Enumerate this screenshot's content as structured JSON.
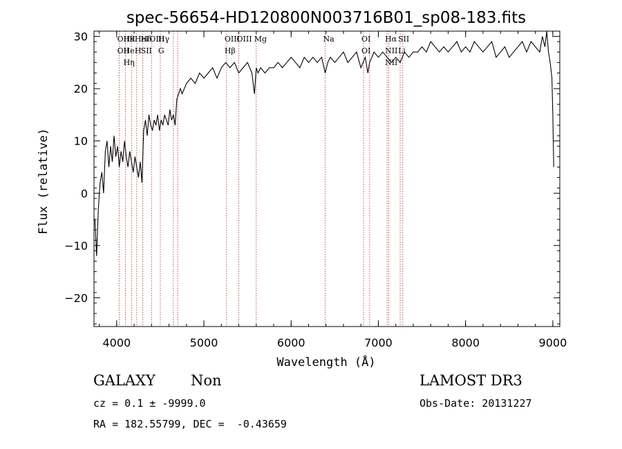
{
  "chart_data": {
    "type": "line",
    "title": "spec-56654-HD120800N003716B01_sp08-183.fits",
    "xlabel": "Wavelength (Å)",
    "ylabel": "Flux (relative)",
    "xlim": [
      3740,
      9080
    ],
    "ylim": [
      -25.5,
      31.0
    ],
    "x_ticks": [
      4000,
      5000,
      6000,
      7000,
      8000,
      9000
    ],
    "y_ticks": [
      -20,
      -10,
      0,
      10,
      20,
      30
    ],
    "grid": false,
    "series": [
      {
        "x": [
          3750,
          3770,
          3790,
          3810,
          3830,
          3850,
          3870,
          3890,
          3910,
          3930,
          3950,
          3970,
          3990,
          4010,
          4030,
          4050,
          4070,
          4090,
          4110,
          4130,
          4150,
          4170,
          4190,
          4210,
          4230,
          4250,
          4270,
          4290,
          4310,
          4330,
          4350,
          4370,
          4390,
          4410,
          4430,
          4450,
          4470,
          4490,
          4510,
          4530,
          4550,
          4570,
          4590,
          4610,
          4630,
          4650,
          4670,
          4690,
          4710,
          4730,
          4750,
          4800,
          4850,
          4900,
          4950,
          5000,
          5050,
          5100,
          5150,
          5200,
          5250,
          5300,
          5350,
          5400,
          5450,
          5500,
          5550,
          5580,
          5600,
          5620,
          5650,
          5700,
          5750,
          5800,
          5850,
          5900,
          5950,
          6000,
          6050,
          6100,
          6150,
          6200,
          6250,
          6300,
          6350,
          6390,
          6420,
          6450,
          6500,
          6550,
          6600,
          6650,
          6700,
          6750,
          6800,
          6850,
          6880,
          6900,
          6950,
          7000,
          7050,
          7100,
          7150,
          7200,
          7250,
          7300,
          7350,
          7400,
          7450,
          7500,
          7550,
          7600,
          7650,
          7700,
          7750,
          7800,
          7850,
          7900,
          7950,
          8000,
          8050,
          8100,
          8150,
          8200,
          8250,
          8300,
          8350,
          8400,
          8450,
          8500,
          8550,
          8600,
          8650,
          8700,
          8750,
          8800,
          8850,
          8880,
          8910,
          8930,
          8950,
          8970,
          8990,
          9000,
          9010
        ],
        "y": [
          -5,
          -12,
          -3,
          2,
          4,
          0,
          8,
          10,
          5,
          9,
          6,
          11,
          7,
          9,
          5,
          8,
          6,
          10,
          7,
          5,
          8,
          6,
          4,
          7,
          5,
          3,
          6,
          2,
          12,
          14,
          11,
          15,
          13,
          12,
          14,
          13,
          15,
          12,
          14,
          13,
          15,
          14,
          13,
          16,
          14,
          15,
          13,
          18,
          19,
          20,
          19,
          21,
          22,
          21,
          23,
          22,
          23,
          24,
          22,
          24,
          25,
          24,
          25,
          23,
          24,
          25,
          23,
          19,
          24,
          23,
          24,
          23,
          24,
          24,
          25,
          24,
          25,
          26,
          25,
          24,
          26,
          25,
          26,
          25,
          26,
          23,
          25,
          26,
          25,
          26,
          27,
          25,
          26,
          27,
          24,
          26,
          23,
          25,
          27,
          26,
          27,
          26,
          25,
          26,
          25,
          27,
          26,
          27,
          27,
          28,
          27,
          29,
          28,
          27,
          28,
          27,
          28,
          29,
          27,
          28,
          27,
          29,
          28,
          27,
          28,
          29,
          26,
          27,
          28,
          26,
          27,
          28,
          29,
          27,
          29,
          28,
          27,
          30,
          28,
          31,
          27,
          25,
          22,
          15,
          5
        ]
      }
    ],
    "lines": [
      {
        "x": 4030,
        "labels": [
          "OII",
          "OII"
        ]
      },
      {
        "x": 4101,
        "labels": [
          "Hθ",
          "He",
          "Hη"
        ]
      },
      {
        "x": 4170,
        "labels": [
          "K"
        ]
      },
      {
        "x": 4230,
        "labels": [
          "HeI",
          "H"
        ]
      },
      {
        "x": 4300,
        "labels": [
          "Hδ",
          "SII"
        ]
      },
      {
        "x": 4400,
        "labels": [
          "OIII"
        ]
      },
      {
        "x": 4500,
        "labels": [
          "Hγ",
          "G"
        ]
      },
      {
        "x": 4650,
        "labels": []
      },
      {
        "x": 4700,
        "labels": []
      },
      {
        "x": 5260,
        "labels": [
          "OIII",
          "Hβ"
        ]
      },
      {
        "x": 5400,
        "labels": [
          "OIII"
        ]
      },
      {
        "x": 5600,
        "labels": [
          "Mg"
        ]
      },
      {
        "x": 6390,
        "labels": [
          "Na"
        ]
      },
      {
        "x": 6830,
        "labels": [
          "OI",
          "OI"
        ]
      },
      {
        "x": 6900,
        "labels": []
      },
      {
        "x": 7100,
        "labels": [
          "Hα",
          "NII",
          "NII"
        ]
      },
      {
        "x": 7120,
        "labels": []
      },
      {
        "x": 7250,
        "labels": [
          "SII",
          "Li"
        ]
      },
      {
        "x": 7280,
        "labels": []
      }
    ]
  },
  "info": {
    "object_class": "GALAXY",
    "object_subclass": "Non",
    "survey": "LAMOST DR3",
    "cz_line": "cz = 0.1 ± -9999.0",
    "obs_date_line": "Obs-Date: 20131227",
    "radec_line": "RA = 182.55799, DEC =  -0.43659"
  }
}
